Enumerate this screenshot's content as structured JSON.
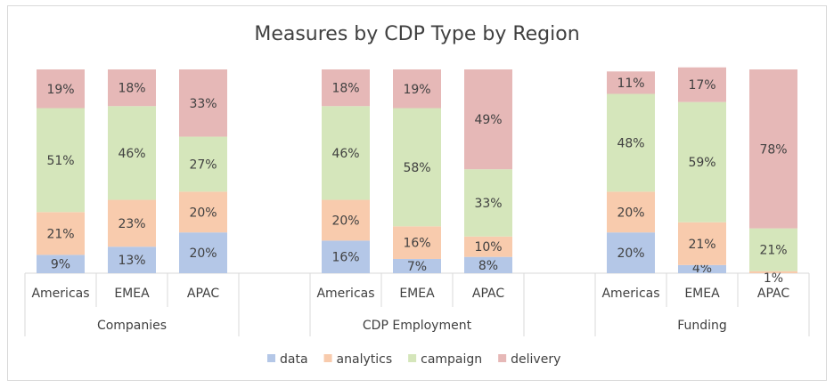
{
  "chart_data": {
    "type": "bar",
    "stacked": true,
    "percent": true,
    "title": "Measures by CDP Type by Region",
    "groups": [
      {
        "name": "Companies",
        "categories": [
          "Americas",
          "EMEA",
          "APAC"
        ],
        "series": {
          "data": [
            9,
            13,
            20
          ],
          "analytics": [
            21,
            23,
            20
          ],
          "campaign": [
            51,
            46,
            27
          ],
          "delivery": [
            19,
            18,
            33
          ]
        }
      },
      {
        "name": "CDP Employment",
        "categories": [
          "Americas",
          "EMEA",
          "APAC"
        ],
        "series": {
          "data": [
            16,
            7,
            8
          ],
          "analytics": [
            20,
            16,
            10
          ],
          "campaign": [
            46,
            58,
            33
          ],
          "delivery": [
            18,
            19,
            49
          ]
        }
      },
      {
        "name": "Funding",
        "categories": [
          "Americas",
          "EMEA",
          "APAC"
        ],
        "series": {
          "data": [
            20,
            4,
            0
          ],
          "analytics": [
            20,
            21,
            1
          ],
          "campaign": [
            48,
            59,
            21
          ],
          "delivery": [
            11,
            17,
            78
          ]
        }
      }
    ],
    "series_names": [
      "data",
      "analytics",
      "campaign",
      "delivery"
    ],
    "colors": {
      "data": "#b4c7e7",
      "analytics": "#f8cbad",
      "campaign": "#d5e6bb",
      "delivery": "#e6b8b7"
    },
    "ylim": [
      0,
      100
    ],
    "legend": "bottom"
  }
}
